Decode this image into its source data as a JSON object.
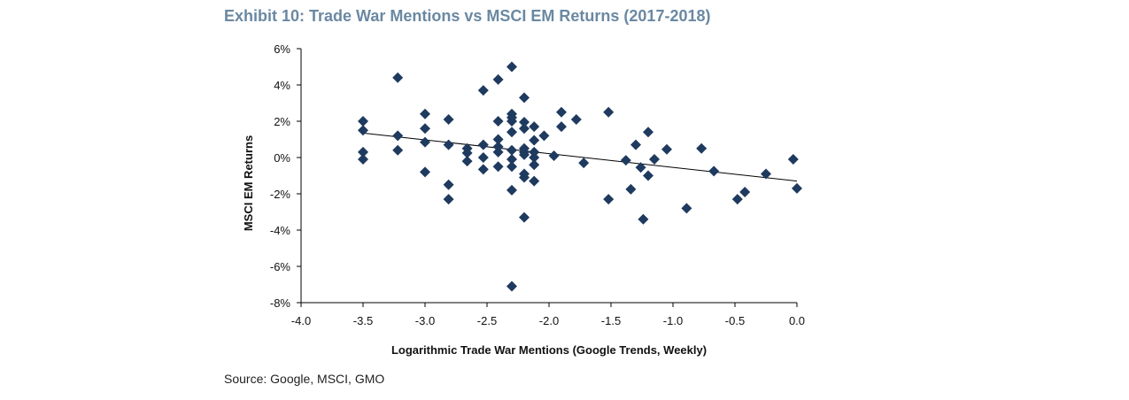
{
  "title": "Exhibit 10: Trade War Mentions vs MSCI EM Returns (2017-2018)",
  "source": "Source: Google, MSCI, GMO",
  "chart_data": {
    "type": "scatter",
    "xlabel": "Logarithmic Trade War Mentions (Google Trends, Weekly)",
    "ylabel": "MSCI EM Returns",
    "xlim": [
      -4.0,
      0.0
    ],
    "ylim": [
      -8,
      6
    ],
    "x_ticks": [
      "-4.0",
      "-3.5",
      "-3.0",
      "-2.5",
      "-2.0",
      "-1.5",
      "-1.0",
      "-0.5",
      "0.0"
    ],
    "y_ticks": [
      "6%",
      "4%",
      "2%",
      "0%",
      "-2%",
      "-4%",
      "-6%",
      "-8%"
    ],
    "marker_color": "#1f3a5f",
    "trendline": {
      "x": [
        -3.5,
        0.0
      ],
      "y": [
        1.35,
        -1.3
      ]
    },
    "points": [
      {
        "x": -3.5,
        "y": 2.0
      },
      {
        "x": -3.5,
        "y": 1.5
      },
      {
        "x": -3.5,
        "y": 0.3
      },
      {
        "x": -3.5,
        "y": -0.1
      },
      {
        "x": -3.22,
        "y": 4.4
      },
      {
        "x": -3.22,
        "y": 1.2
      },
      {
        "x": -3.22,
        "y": 0.4
      },
      {
        "x": -3.0,
        "y": 2.4
      },
      {
        "x": -3.0,
        "y": 1.6
      },
      {
        "x": -3.0,
        "y": 0.85
      },
      {
        "x": -3.0,
        "y": -0.8
      },
      {
        "x": -2.81,
        "y": 2.1
      },
      {
        "x": -2.81,
        "y": 0.7
      },
      {
        "x": -2.81,
        "y": -1.5
      },
      {
        "x": -2.81,
        "y": -2.3
      },
      {
        "x": -2.66,
        "y": 0.5
      },
      {
        "x": -2.66,
        "y": 0.25
      },
      {
        "x": -2.66,
        "y": -0.2
      },
      {
        "x": -2.53,
        "y": 3.7
      },
      {
        "x": -2.53,
        "y": 0.7
      },
      {
        "x": -2.53,
        "y": 0.0
      },
      {
        "x": -2.53,
        "y": -0.65
      },
      {
        "x": -2.41,
        "y": 4.3
      },
      {
        "x": -2.41,
        "y": 2.0
      },
      {
        "x": -2.41,
        "y": 1.0
      },
      {
        "x": -2.41,
        "y": 0.6
      },
      {
        "x": -2.41,
        "y": 0.3
      },
      {
        "x": -2.41,
        "y": -0.5
      },
      {
        "x": -2.3,
        "y": 5.0
      },
      {
        "x": -2.3,
        "y": 2.4
      },
      {
        "x": -2.3,
        "y": 2.2
      },
      {
        "x": -2.3,
        "y": 2.0
      },
      {
        "x": -2.3,
        "y": 1.4
      },
      {
        "x": -2.3,
        "y": 0.4
      },
      {
        "x": -2.3,
        "y": -0.1
      },
      {
        "x": -2.3,
        "y": -0.5
      },
      {
        "x": -2.3,
        "y": -1.8
      },
      {
        "x": -2.3,
        "y": -7.1
      },
      {
        "x": -2.2,
        "y": 3.3
      },
      {
        "x": -2.2,
        "y": 1.95
      },
      {
        "x": -2.2,
        "y": 1.6
      },
      {
        "x": -2.2,
        "y": 0.5
      },
      {
        "x": -2.2,
        "y": 0.3
      },
      {
        "x": -2.2,
        "y": 0.15
      },
      {
        "x": -2.2,
        "y": -0.9
      },
      {
        "x": -2.2,
        "y": -1.1
      },
      {
        "x": -2.2,
        "y": -3.3
      },
      {
        "x": -2.12,
        "y": 1.7
      },
      {
        "x": -2.12,
        "y": 0.95
      },
      {
        "x": -2.12,
        "y": 0.3
      },
      {
        "x": -2.12,
        "y": 0.0
      },
      {
        "x": -2.12,
        "y": -0.4
      },
      {
        "x": -2.12,
        "y": -1.3
      },
      {
        "x": -2.04,
        "y": 1.2
      },
      {
        "x": -1.96,
        "y": 0.1
      },
      {
        "x": -1.9,
        "y": 2.5
      },
      {
        "x": -1.9,
        "y": 1.7
      },
      {
        "x": -1.78,
        "y": 2.1
      },
      {
        "x": -1.72,
        "y": -0.3
      },
      {
        "x": -1.52,
        "y": 2.5
      },
      {
        "x": -1.52,
        "y": -2.3
      },
      {
        "x": -1.38,
        "y": -0.15
      },
      {
        "x": -1.34,
        "y": -1.75
      },
      {
        "x": -1.3,
        "y": 0.7
      },
      {
        "x": -1.26,
        "y": -0.55
      },
      {
        "x": -1.24,
        "y": -3.4
      },
      {
        "x": -1.2,
        "y": 1.4
      },
      {
        "x": -1.2,
        "y": -1.0
      },
      {
        "x": -1.15,
        "y": -0.1
      },
      {
        "x": -1.05,
        "y": 0.45
      },
      {
        "x": -0.89,
        "y": -2.8
      },
      {
        "x": -0.77,
        "y": 0.5
      },
      {
        "x": -0.67,
        "y": -0.75
      },
      {
        "x": -0.48,
        "y": -2.3
      },
      {
        "x": -0.42,
        "y": -1.9
      },
      {
        "x": -0.25,
        "y": -0.9
      },
      {
        "x": -0.03,
        "y": -0.1
      },
      {
        "x": 0.0,
        "y": -1.7
      }
    ]
  }
}
